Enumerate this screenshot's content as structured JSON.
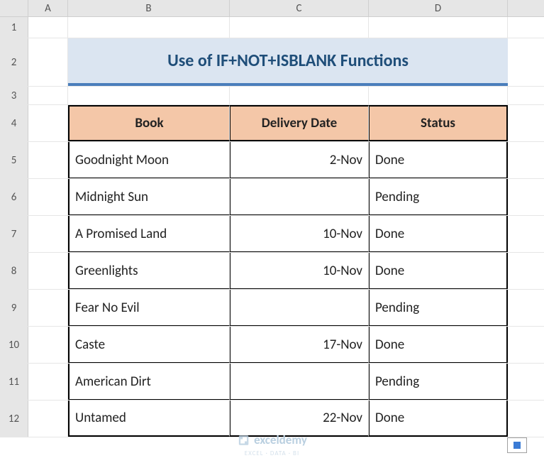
{
  "columns": [
    "A",
    "B",
    "C",
    "D"
  ],
  "rowNumbers": [
    "1",
    "2",
    "3",
    "4",
    "5",
    "6",
    "7",
    "8",
    "9",
    "10",
    "11",
    "12"
  ],
  "title": "Use of IF+NOT+ISBLANK Functions",
  "colors": {
    "titleBg": "#dbe5f1",
    "titleBorder": "#4a7ebb",
    "titleText": "#1f4e79",
    "headerBg": "#f4c7a8",
    "gridLine": "#e6e6e6",
    "headerFill": "#e6e6e6"
  },
  "table": {
    "headers": {
      "book": "Book",
      "delivery": "Delivery Date",
      "status": "Status"
    },
    "rows": [
      {
        "book": "Goodnight Moon",
        "delivery": "2-Nov",
        "status": "Done"
      },
      {
        "book": "Midnight Sun",
        "delivery": "",
        "status": "Pending"
      },
      {
        "book": "A Promised Land",
        "delivery": "10-Nov",
        "status": "Done"
      },
      {
        "book": "Greenlights",
        "delivery": "10-Nov",
        "status": "Done"
      },
      {
        "book": "Fear No Evil",
        "delivery": "",
        "status": "Pending"
      },
      {
        "book": "Caste",
        "delivery": "17-Nov",
        "status": "Done"
      },
      {
        "book": "American Dirt",
        "delivery": "",
        "status": "Pending"
      },
      {
        "book": "Untamed",
        "delivery": "22-Nov",
        "status": "Done"
      }
    ]
  },
  "watermark": {
    "brand": "exceldemy",
    "tagline": "EXCEL · DATA · BI"
  }
}
